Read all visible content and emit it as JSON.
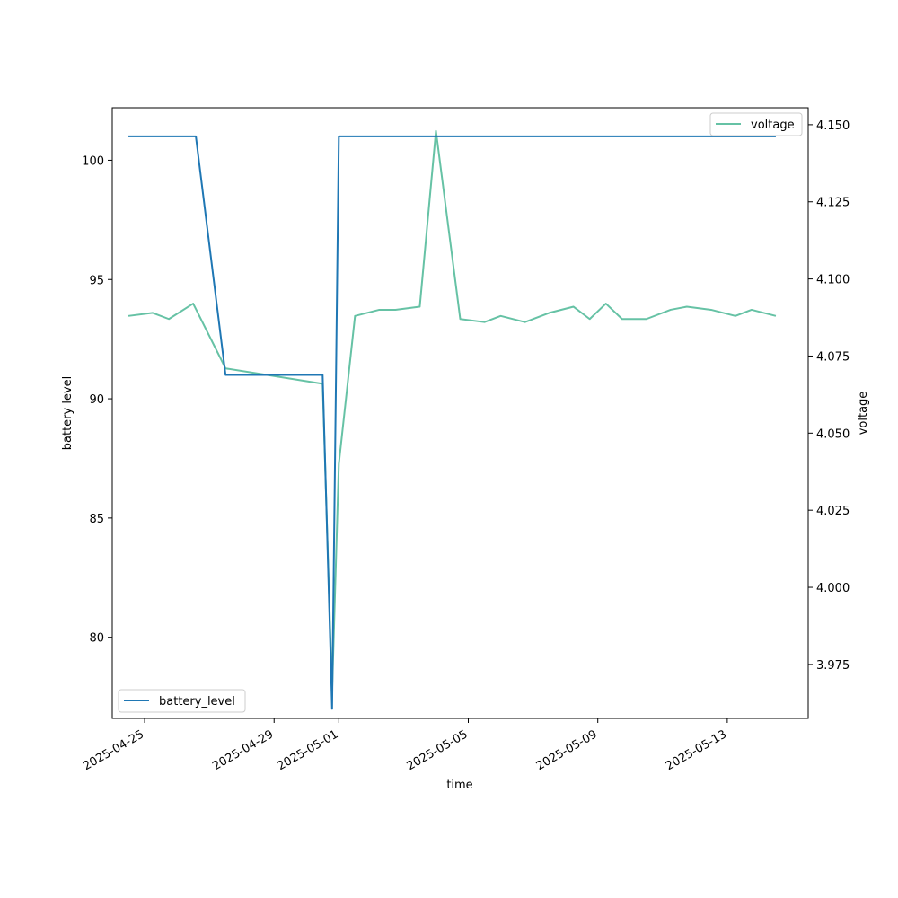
{
  "chart_data": {
    "type": "line",
    "title": "",
    "xlabel": "time",
    "ylabel": "battery level",
    "ylabel_right": "voltage",
    "xlim": [
      "2025-04-24T00:00",
      "2025-05-15T12:00"
    ],
    "ylim": [
      76.6,
      102.2
    ],
    "ylim_right": [
      3.9575,
      4.1555
    ],
    "grid": false,
    "x_ticks": [
      "2025-04-25",
      "2025-04-29",
      "2025-05-01",
      "2025-05-05",
      "2025-05-09",
      "2025-05-13"
    ],
    "y_ticks": [
      80,
      85,
      90,
      95,
      100
    ],
    "y_ticks_right": [
      3.975,
      4.0,
      4.025,
      4.05,
      4.075,
      4.1,
      4.125,
      4.15
    ],
    "series": [
      {
        "name": "battery_level",
        "axis": "left",
        "color": "#1f77b4",
        "legend_position": "lower-left",
        "points": [
          [
            "2025-04-24T12:00",
            101
          ],
          [
            "2025-04-26T14:00",
            101
          ],
          [
            "2025-04-27T12:00",
            91
          ],
          [
            "2025-04-30T12:00",
            91
          ],
          [
            "2025-04-30T19:00",
            77
          ],
          [
            "2025-05-01T00:00",
            101
          ],
          [
            "2025-05-14T12:00",
            101
          ]
        ]
      },
      {
        "name": "voltage",
        "axis": "right",
        "color": "#66c2a5",
        "legend_position": "upper-right",
        "points": [
          [
            "2025-04-24T12:00",
            4.088
          ],
          [
            "2025-04-25T06:00",
            4.089
          ],
          [
            "2025-04-25T18:00",
            4.087
          ],
          [
            "2025-04-26T12:00",
            4.092
          ],
          [
            "2025-04-27T12:00",
            4.071
          ],
          [
            "2025-04-30T12:00",
            4.066
          ],
          [
            "2025-04-30T19:00",
            3.966
          ],
          [
            "2025-05-01T00:00",
            4.04
          ],
          [
            "2025-05-01T12:00",
            4.088
          ],
          [
            "2025-05-02T06:00",
            4.09
          ],
          [
            "2025-05-02T18:00",
            4.09
          ],
          [
            "2025-05-03T12:00",
            4.091
          ],
          [
            "2025-05-04T00:00",
            4.148
          ],
          [
            "2025-05-04T18:00",
            4.087
          ],
          [
            "2025-05-05T12:00",
            4.086
          ],
          [
            "2025-05-06T00:00",
            4.088
          ],
          [
            "2025-05-06T18:00",
            4.086
          ],
          [
            "2025-05-07T12:00",
            4.089
          ],
          [
            "2025-05-08T06:00",
            4.091
          ],
          [
            "2025-05-08T18:00",
            4.087
          ],
          [
            "2025-05-09T06:00",
            4.092
          ],
          [
            "2025-05-09T18:00",
            4.087
          ],
          [
            "2025-05-10T12:00",
            4.087
          ],
          [
            "2025-05-11T06:00",
            4.09
          ],
          [
            "2025-05-11T18:00",
            4.091
          ],
          [
            "2025-05-12T12:00",
            4.09
          ],
          [
            "2025-05-13T06:00",
            4.088
          ],
          [
            "2025-05-13T18:00",
            4.09
          ],
          [
            "2025-05-14T12:00",
            4.088
          ]
        ]
      }
    ]
  }
}
